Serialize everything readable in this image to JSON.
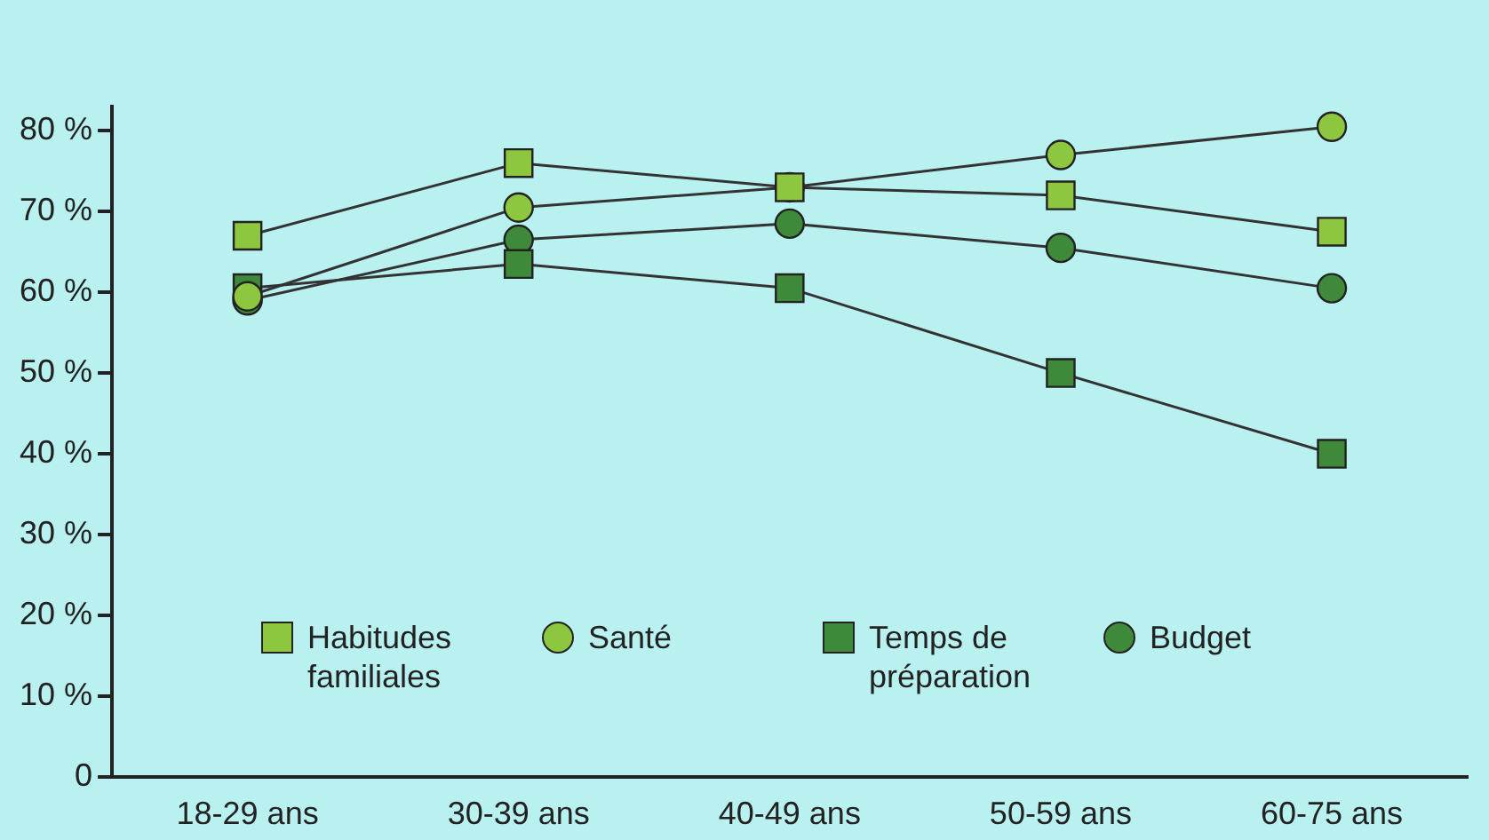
{
  "chart_data": {
    "type": "line",
    "categories": [
      "18-29 ans",
      "30-39 ans",
      "40-49 ans",
      "50-59 ans",
      "60-75 ans"
    ],
    "series": [
      {
        "name": "Habitudes familiales",
        "color": "#8dc63f",
        "marker": "square",
        "values": [
          67,
          76,
          73,
          72,
          67.5
        ]
      },
      {
        "name": "Santé",
        "color": "#8dc63f",
        "marker": "circle",
        "values": [
          59.5,
          70.5,
          73,
          77,
          80.5
        ]
      },
      {
        "name": "Temps de préparation",
        "color": "#3f8a3a",
        "marker": "square",
        "values": [
          60.5,
          63.5,
          60.5,
          50,
          40
        ]
      },
      {
        "name": "Budget",
        "color": "#3f8a3a",
        "marker": "circle",
        "values": [
          59,
          66.5,
          68.5,
          65.5,
          60.5
        ]
      }
    ],
    "ylim": [
      0,
      83
    ],
    "yticks": [
      {
        "value": 0,
        "label": "0"
      },
      {
        "value": 10,
        "label": "10 %"
      },
      {
        "value": 20,
        "label": "20 %"
      },
      {
        "value": 30,
        "label": "30 %"
      },
      {
        "value": 40,
        "label": "40 %"
      },
      {
        "value": 50,
        "label": "50 %"
      },
      {
        "value": 60,
        "label": "60 %"
      },
      {
        "value": 70,
        "label": "70 %"
      },
      {
        "value": 80,
        "label": "80 %"
      }
    ],
    "grid": false,
    "legend": "bottom",
    "line_style": "solid"
  }
}
